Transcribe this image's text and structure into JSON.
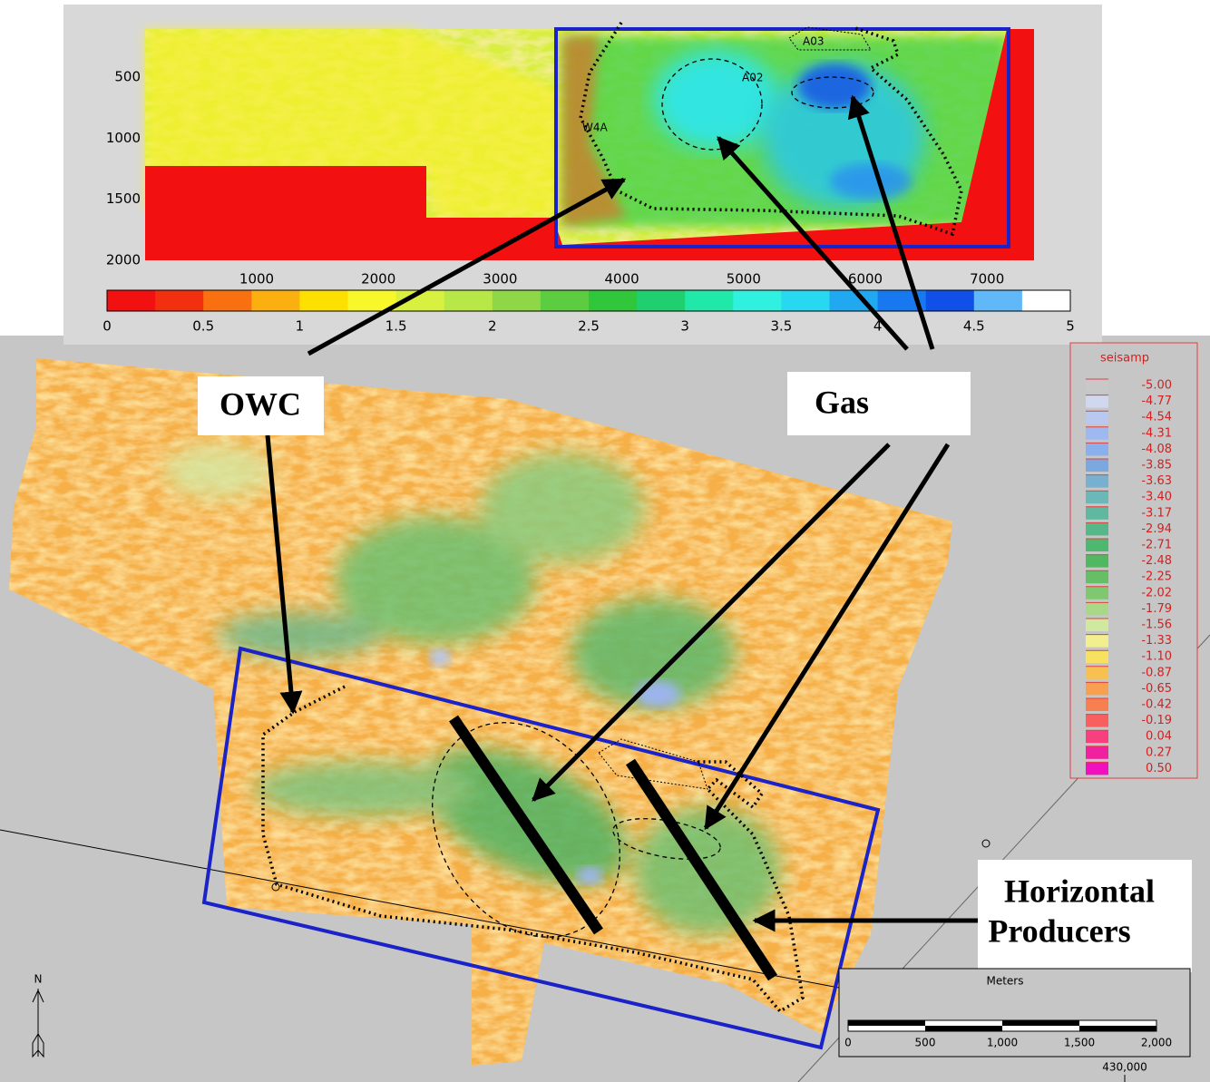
{
  "top_map": {
    "y_ticks": [
      "500",
      "1000",
      "1500",
      "2000"
    ],
    "x_ticks": [
      "1000",
      "2000",
      "3000",
      "4000",
      "5000",
      "6000",
      "7000"
    ],
    "colorbar_ticks": [
      "0",
      "0.5",
      "1",
      "1.5",
      "2",
      "2.5",
      "3",
      "3.5",
      "4",
      "4.5",
      "5"
    ],
    "well_labels": [
      "A03",
      "A02",
      "W4A"
    ]
  },
  "annotations": {
    "owc": "OWC",
    "gas": "Gas",
    "producers": [
      "Horizontal",
      "Producers"
    ]
  },
  "legend": {
    "title": "seisamp",
    "values": [
      "-5.00",
      "-4.77",
      "-4.54",
      "-4.31",
      "-4.08",
      "-3.85",
      "-3.63",
      "-3.40",
      "-3.17",
      "-2.94",
      "-2.71",
      "-2.48",
      "-2.25",
      "-2.02",
      "-1.79",
      "-1.56",
      "-1.33",
      "-1.10",
      "-0.87",
      "-0.65",
      "-0.42",
      "-0.19",
      "0.04",
      "0.27",
      "0.50"
    ]
  },
  "scale_bar": {
    "title": "Meters",
    "ticks": [
      "0",
      "500",
      "1,000",
      "1,500",
      "2,000"
    ],
    "coordinate": "430,000"
  },
  "north": "N"
}
